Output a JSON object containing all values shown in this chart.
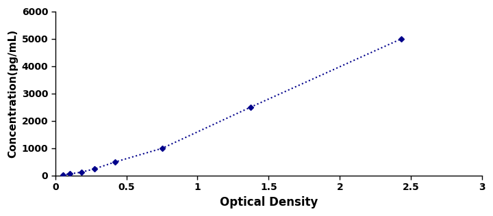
{
  "x_data": [
    0.052,
    0.103,
    0.183,
    0.278,
    0.422,
    0.753,
    1.373,
    2.434
  ],
  "y_data": [
    31.25,
    62.5,
    125,
    250,
    500,
    1000,
    2500,
    5000
  ],
  "line_color": "#00008B",
  "marker_style": "D",
  "marker_size": 4,
  "marker_color": "#00008B",
  "line_style": "dotted",
  "line_width": 1.5,
  "xlabel": "Optical Density",
  "ylabel": "Concentration(pg/mL)",
  "xlim": [
    0,
    3
  ],
  "ylim": [
    0,
    6000
  ],
  "xticks": [
    0,
    0.5,
    1,
    1.5,
    2,
    2.5,
    3
  ],
  "yticks": [
    0,
    1000,
    2000,
    3000,
    4000,
    5000,
    6000
  ],
  "xlabel_fontsize": 12,
  "ylabel_fontsize": 11,
  "tick_fontsize": 10,
  "figsize": [
    7.2,
    3.16
  ],
  "dpi": 100,
  "bg_color": "#ffffff",
  "plot_bg_color": "#ffffff",
  "spine_color": "#000000"
}
